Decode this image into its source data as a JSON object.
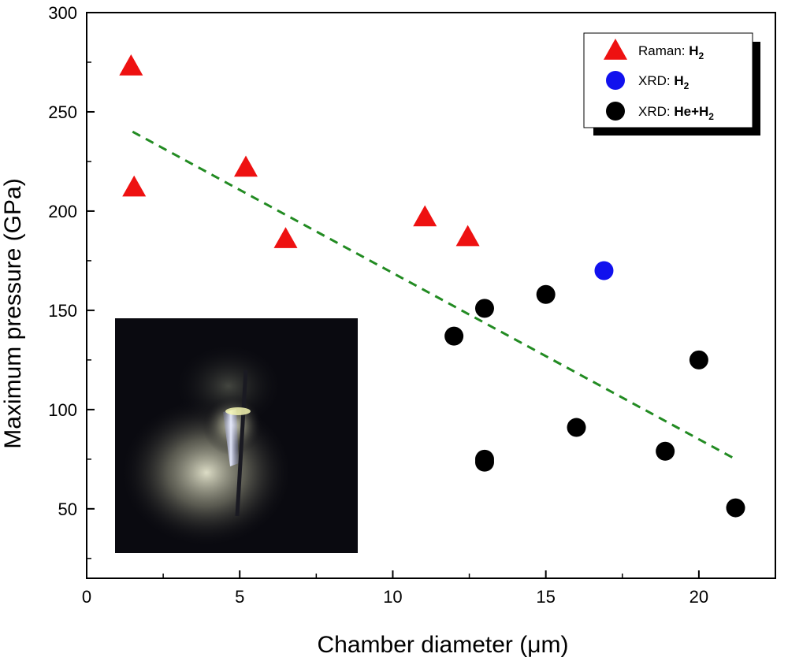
{
  "chart_data": {
    "type": "scatter",
    "title": "",
    "xlabel": "Chamber diameter (μm)",
    "ylabel": "Maximum pressure (GPa)",
    "xlim": [
      0,
      22.5
    ],
    "ylim": [
      15,
      300
    ],
    "xticks": [
      0,
      5,
      10,
      15,
      20
    ],
    "yticks": [
      50,
      100,
      150,
      200,
      250,
      300
    ],
    "grid": false,
    "legend_position": "top-right",
    "series": [
      {
        "name": "Raman: H2",
        "legend_prefix": "Raman: ",
        "legend_bold": "H",
        "legend_sub": "2",
        "marker": "triangle",
        "color": "#ee1111",
        "points": [
          [
            1.45,
            273
          ],
          [
            1.55,
            212
          ],
          [
            5.2,
            222
          ],
          [
            6.5,
            186
          ],
          [
            11.05,
            197
          ],
          [
            12.45,
            187
          ]
        ]
      },
      {
        "name": "XRD: H2",
        "legend_prefix": "XRD: ",
        "legend_bold": "H",
        "legend_sub": "2",
        "marker": "circle",
        "color": "#1111ee",
        "points": [
          [
            16.9,
            170
          ]
        ]
      },
      {
        "name": "XRD: He+H2",
        "legend_prefix": "XRD: ",
        "legend_bold": "He+H",
        "legend_sub": "2",
        "marker": "circle",
        "color": "#000000",
        "points": [
          [
            12.0,
            137
          ],
          [
            13.0,
            151
          ],
          [
            13.0,
            75
          ],
          [
            13.0,
            73.5
          ],
          [
            15.0,
            158
          ],
          [
            16.0,
            91
          ],
          [
            18.9,
            79
          ],
          [
            20.0,
            125
          ],
          [
            21.2,
            50.5
          ]
        ]
      }
    ],
    "trend_line": {
      "style": "dashed",
      "color": "#228b22",
      "points": [
        [
          1.5,
          240
        ],
        [
          21.2,
          75
        ]
      ]
    },
    "inset_image": {
      "description_icon": "micrograph-inset",
      "background": "#0a0a10"
    }
  }
}
